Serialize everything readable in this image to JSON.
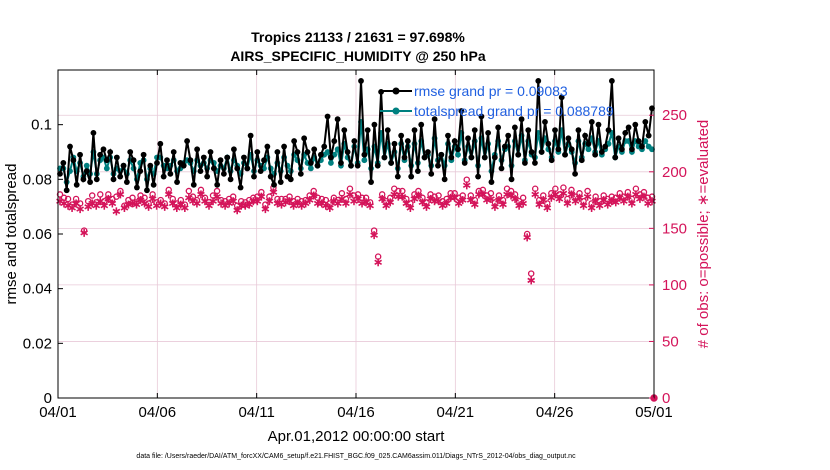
{
  "chart_data": {
    "type": "line",
    "title_line1": "Tropics 21133 / 21631 = 97.698%",
    "title_line2": "AIRS_SPECIFIC_HUMIDITY @ 250 hPa",
    "xlabel": "Apr.01,2012 00:00:00 start",
    "ylabel_left": "rmse and totalspread",
    "ylabel_right": "# of obs: o=possible; ∗=evaluated",
    "footer": "data file: /Users/raeder/DAI/ATM_forcXX/CAM6_setup/f.e21.FHIST_BGC.f09_025.CAM6assim.011/Diags_NTrS_2012-04/obs_diag_output.nc",
    "xlim": [
      0,
      30
    ],
    "ylim_left": [
      0,
      0.12
    ],
    "ylim_right": [
      0,
      290
    ],
    "x_ticks": [
      0,
      5,
      10,
      15,
      20,
      25,
      30
    ],
    "x_tick_labels": [
      "04/01",
      "04/06",
      "04/11",
      "04/16",
      "04/21",
      "04/26",
      "05/01"
    ],
    "y_left_ticks": [
      0,
      0.02,
      0.04,
      0.06,
      0.08,
      0.1
    ],
    "y_left_tick_labels": [
      "0",
      "0.02",
      "0.04",
      "0.06",
      "0.08",
      "0.1"
    ],
    "y_right_ticks": [
      0,
      50,
      100,
      150,
      200,
      250
    ],
    "y_right_tick_labels": [
      "0",
      "50",
      "100",
      "150",
      "200",
      "250"
    ],
    "legend": [
      {
        "label": "rmse grand pr = 0.09083",
        "color": "#000000"
      },
      {
        "label": "totalspread grand pr = 0.088789",
        "color": "#008080"
      }
    ],
    "colors": {
      "rmse": "#000000",
      "spread": "#008080",
      "obs": "#d4145a",
      "grid": "#e8c9d8"
    },
    "series": [
      {
        "name": "rmse",
        "axis": "left",
        "values": [
          0.082,
          0.086,
          0.076,
          0.092,
          0.087,
          0.078,
          0.089,
          0.08,
          0.083,
          0.079,
          0.097,
          0.08,
          0.089,
          0.091,
          0.087,
          0.09,
          0.08,
          0.088,
          0.081,
          0.085,
          0.079,
          0.09,
          0.087,
          0.077,
          0.083,
          0.089,
          0.076,
          0.085,
          0.078,
          0.086,
          0.093,
          0.081,
          0.087,
          0.082,
          0.09,
          0.079,
          0.086,
          0.085,
          0.094,
          0.087,
          0.078,
          0.091,
          0.083,
          0.088,
          0.081,
          0.09,
          0.084,
          0.078,
          0.087,
          0.082,
          0.088,
          0.08,
          0.091,
          0.084,
          0.077,
          0.088,
          0.084,
          0.096,
          0.081,
          0.09,
          0.083,
          0.087,
          0.092,
          0.081,
          0.078,
          0.09,
          0.079,
          0.092,
          0.081,
          0.08,
          0.094,
          0.09,
          0.082,
          0.095,
          0.09,
          0.086,
          0.091,
          0.085,
          0.089,
          0.092,
          0.103,
          0.088,
          0.094,
          0.102,
          0.086,
          0.098,
          0.09,
          0.085,
          0.094,
          0.085,
          0.116,
          0.089,
          0.098,
          0.079,
          0.1,
          0.085,
          0.112,
          0.088,
          0.098,
          0.086,
          0.093,
          0.081,
          0.096,
          0.088,
          0.094,
          0.081,
          0.098,
          0.083,
          0.1,
          0.088,
          0.09,
          0.082,
          0.102,
          0.085,
          0.089,
          0.08,
          0.096,
          0.088,
          0.094,
          0.091,
          0.105,
          0.086,
          0.095,
          0.088,
          0.098,
          0.081,
          0.103,
          0.088,
          0.097,
          0.079,
          0.088,
          0.099,
          0.084,
          0.092,
          0.096,
          0.08,
          0.099,
          0.089,
          0.102,
          0.086,
          0.098,
          0.09,
          0.086,
          0.116,
          0.09,
          0.101,
          0.093,
          0.087,
          0.098,
          0.091,
          0.11,
          0.089,
          0.095,
          0.091,
          0.082,
          0.098,
          0.087,
          0.096,
          0.093,
          0.101,
          0.089,
          0.1,
          0.09,
          0.092,
          0.098,
          0.116,
          0.088,
          0.095,
          0.091,
          0.097,
          0.099,
          0.091,
          0.1,
          0.094,
          0.092,
          0.101,
          0.096,
          0.106
        ]
      },
      {
        "name": "totalspread",
        "axis": "left",
        "values": [
          0.084,
          0.084,
          0.079,
          0.083,
          0.088,
          0.083,
          0.086,
          0.081,
          0.085,
          0.082,
          0.09,
          0.082,
          0.087,
          0.088,
          0.084,
          0.088,
          0.082,
          0.084,
          0.083,
          0.085,
          0.082,
          0.087,
          0.084,
          0.08,
          0.086,
          0.087,
          0.08,
          0.084,
          0.082,
          0.088,
          0.088,
          0.085,
          0.084,
          0.085,
          0.087,
          0.083,
          0.084,
          0.086,
          0.087,
          0.086,
          0.083,
          0.087,
          0.085,
          0.086,
          0.084,
          0.087,
          0.086,
          0.083,
          0.085,
          0.084,
          0.088,
          0.083,
          0.087,
          0.085,
          0.082,
          0.086,
          0.084,
          0.089,
          0.083,
          0.087,
          0.085,
          0.084,
          0.088,
          0.084,
          0.082,
          0.086,
          0.083,
          0.088,
          0.085,
          0.083,
          0.089,
          0.087,
          0.084,
          0.089,
          0.086,
          0.084,
          0.088,
          0.085,
          0.087,
          0.089,
          0.09,
          0.086,
          0.089,
          0.091,
          0.085,
          0.093,
          0.088,
          0.085,
          0.092,
          0.086,
          0.101,
          0.087,
          0.091,
          0.084,
          0.092,
          0.086,
          0.097,
          0.088,
          0.093,
          0.086,
          0.09,
          0.084,
          0.093,
          0.087,
          0.092,
          0.085,
          0.093,
          0.086,
          0.094,
          0.088,
          0.089,
          0.085,
          0.095,
          0.087,
          0.089,
          0.085,
          0.093,
          0.087,
          0.092,
          0.089,
          0.097,
          0.087,
          0.092,
          0.088,
          0.094,
          0.085,
          0.095,
          0.088,
          0.093,
          0.083,
          0.089,
          0.094,
          0.087,
          0.091,
          0.092,
          0.085,
          0.094,
          0.089,
          0.096,
          0.087,
          0.094,
          0.089,
          0.088,
          0.097,
          0.09,
          0.095,
          0.091,
          0.088,
          0.094,
          0.09,
          0.098,
          0.089,
          0.093,
          0.09,
          0.086,
          0.094,
          0.088,
          0.093,
          0.091,
          0.095,
          0.09,
          0.094,
          0.089,
          0.091,
          0.093,
          0.097,
          0.088,
          0.092,
          0.09,
          0.094,
          0.094,
          0.09,
          0.094,
          0.092,
          0.091,
          0.094,
          0.092,
          0.091
        ]
      },
      {
        "name": "obs_possible",
        "axis": "right",
        "values": [
          180,
          177,
          176,
          171,
          176,
          172,
          148,
          174,
          179,
          173,
          180,
          174,
          180,
          176,
          178,
          183,
          170,
          175,
          177,
          173,
          179,
          177,
          172,
          180,
          173,
          175,
          172,
          184,
          176,
          172,
          175,
          171,
          183,
          178,
          175,
          184,
          177,
          173,
          179,
          183,
          175,
          174,
          176,
          178,
          170,
          174,
          173,
          175,
          177,
          178,
          182,
          171,
          178,
          186,
          176,
          176,
          176,
          178,
          174,
          176,
          174,
          175,
          179,
          183,
          177,
          176,
          175,
          172,
          177,
          175,
          181,
          176,
          185,
          179,
          180,
          177,
          177,
          173,
          148,
          125,
          180,
          174,
          177,
          185,
          183,
          183,
          176,
          172,
          180,
          183,
          177,
          173,
          180,
          178,
          179,
          174,
          176,
          181,
          181,
          177,
          179,
          193,
          179,
          175,
          183,
          184,
          179,
          181,
          173,
          179,
          175,
          185,
          183,
          180,
          174,
          177,
          145,
          110,
          185,
          175,
          179,
          172,
          181,
          185,
          180,
          186,
          176,
          184,
          178,
          181,
          174,
          183,
          172,
          178,
          174,
          179,
          176,
          178,
          177,
          181,
          178,
          182,
          176,
          185,
          180,
          182,
          177,
          178
        ]
      },
      {
        "name": "obs_evaluated",
        "axis": "right",
        "values": [
          174,
          172,
          170,
          168,
          172,
          167,
          146,
          169,
          172,
          170,
          174,
          170,
          176,
          172,
          165,
          180,
          168,
          171,
          172,
          171,
          175,
          172,
          169,
          176,
          170,
          172,
          169,
          180,
          172,
          168,
          171,
          168,
          177,
          174,
          172,
          180,
          174,
          170,
          174,
          178,
          172,
          170,
          172,
          174,
          166,
          170,
          170,
          171,
          174,
          174,
          178,
          167,
          174,
          182,
          172,
          171,
          173,
          174,
          170,
          172,
          170,
          172,
          175,
          179,
          172,
          172,
          170,
          168,
          174,
          172,
          176,
          172,
          180,
          174,
          176,
          172,
          173,
          170,
          144,
          120,
          176,
          170,
          173,
          180,
          178,
          178,
          172,
          168,
          176,
          179,
          173,
          169,
          176,
          174,
          174,
          170,
          172,
          177,
          177,
          172,
          175,
          188,
          175,
          171,
          180,
          180,
          175,
          176,
          169,
          175,
          171,
          180,
          179,
          176,
          170,
          172,
          142,
          104,
          180,
          171,
          175,
          168,
          177,
          180,
          176,
          181,
          172,
          180,
          174,
          177,
          170,
          178,
          168,
          174,
          170,
          175,
          171,
          174,
          173,
          177,
          174,
          178,
          172,
          180,
          176,
          178,
          172,
          174
        ]
      }
    ]
  }
}
